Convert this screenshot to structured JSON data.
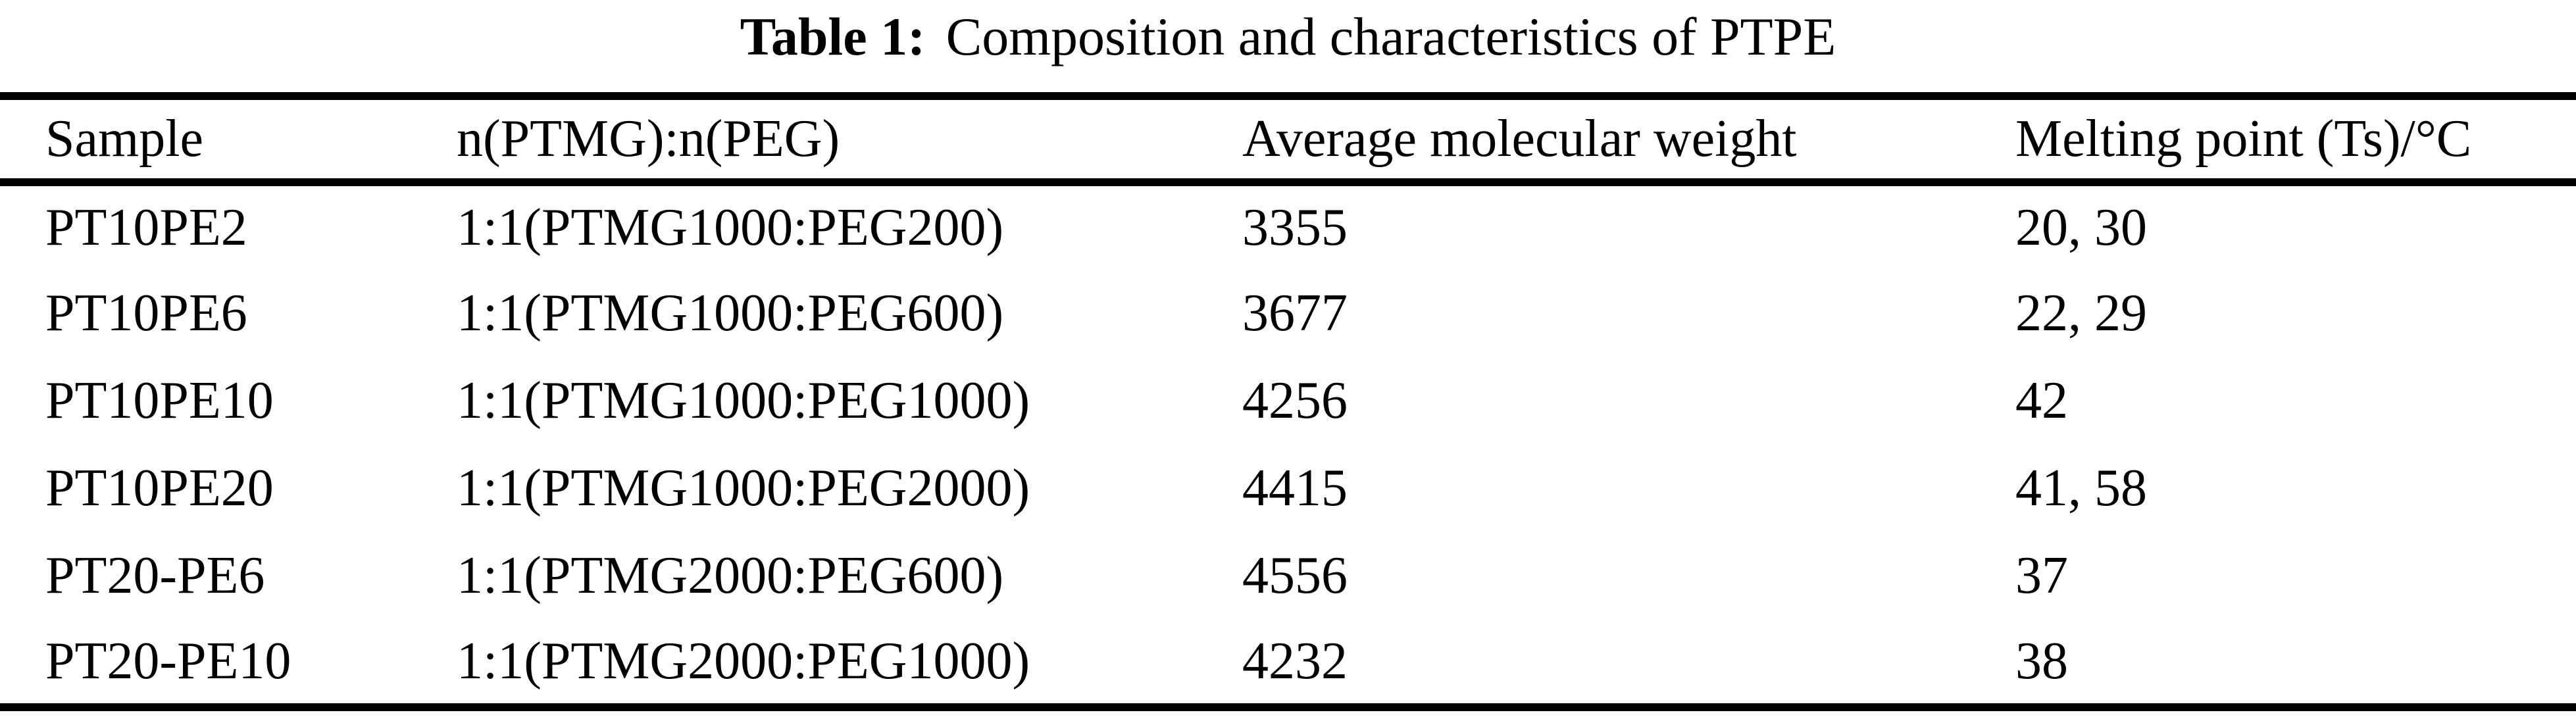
{
  "caption": {
    "label": "Table 1:",
    "text": "Composition and characteristics of PTPE"
  },
  "table": {
    "columns": [
      "Sample",
      "n(PTMG):n(PEG)",
      "Average molecular weight",
      "Melting point (Ts)/°C"
    ],
    "rows": [
      [
        "PT10PE2",
        "1:1(PTMG1000:PEG200)",
        "3355",
        "20, 30"
      ],
      [
        "PT10PE6",
        "1:1(PTMG1000:PEG600)",
        "3677",
        "22, 29"
      ],
      [
        "PT10PE10",
        "1:1(PTMG1000:PEG1000)",
        "4256",
        "42"
      ],
      [
        "PT10PE20",
        "1:1(PTMG1000:PEG2000)",
        "4415",
        "41, 58"
      ],
      [
        "PT20-PE6",
        "1:1(PTMG2000:PEG600)",
        "4556",
        "37"
      ],
      [
        "PT20-PE10",
        "1:1(PTMG2000:PEG1000)",
        "4232",
        "38"
      ]
    ]
  },
  "colors": {
    "text": "#000000",
    "background": "#ffffff",
    "rule": "#000000"
  }
}
